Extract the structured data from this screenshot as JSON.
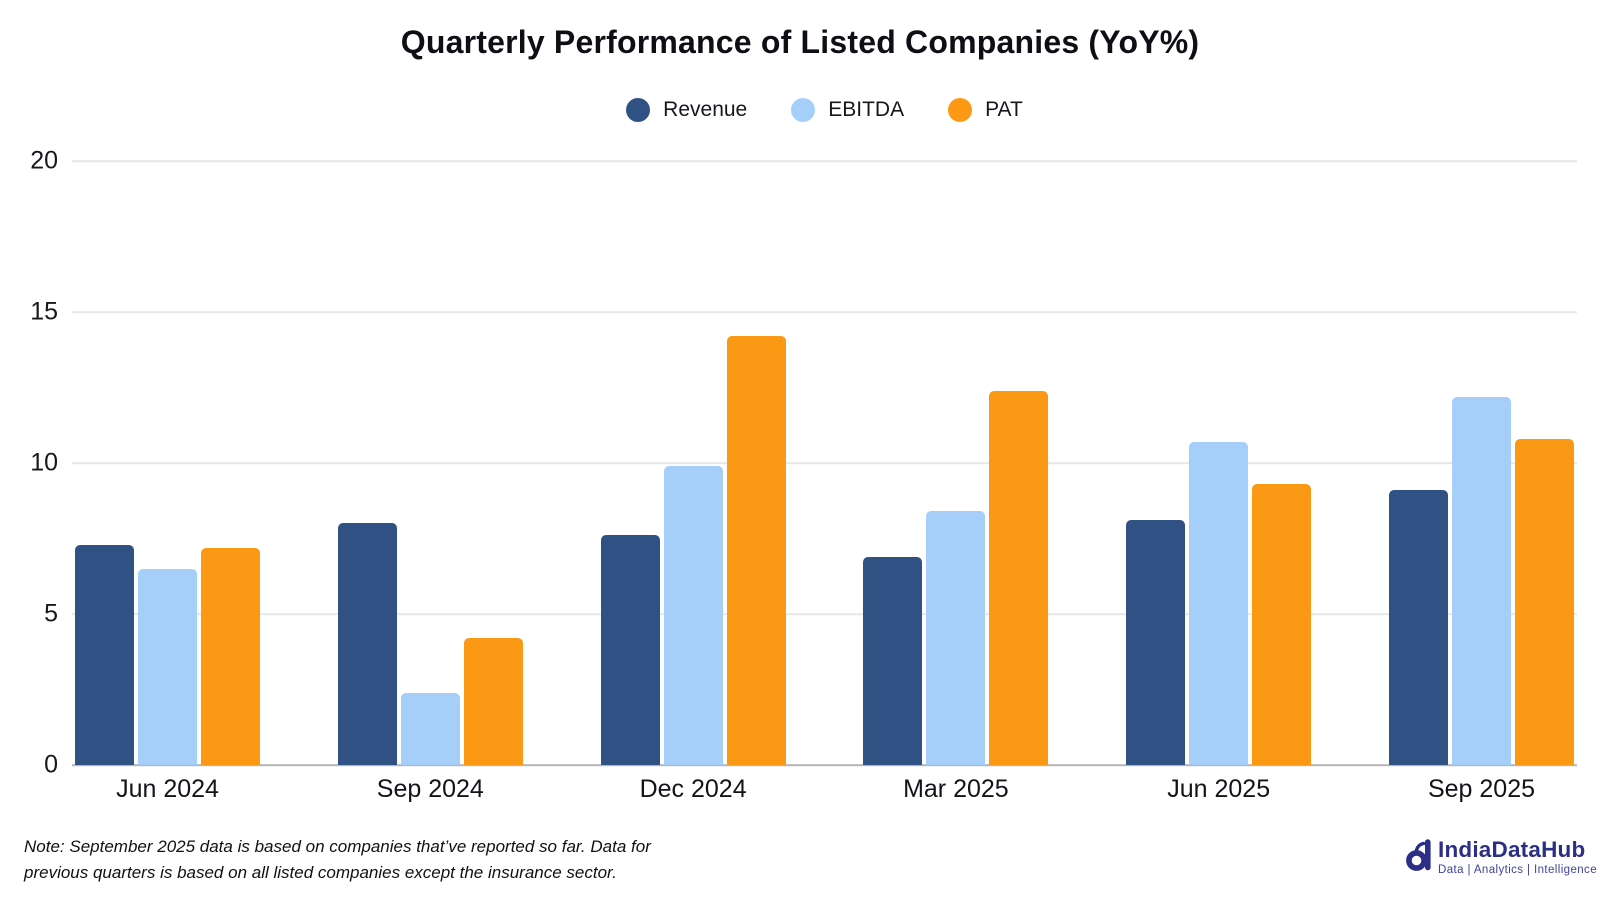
{
  "chart_data": {
    "type": "bar",
    "title": "Quarterly Performance of Listed Companies (YoY%)",
    "categories": [
      "Jun 2024",
      "Sep 2024",
      "Dec 2024",
      "Mar 2025",
      "Jun 2025",
      "Sep 2025"
    ],
    "series": [
      {
        "name": "Revenue",
        "color": "#2F5183",
        "values": [
          7.3,
          8.0,
          7.6,
          6.9,
          8.1,
          9.1
        ]
      },
      {
        "name": "EBITDA",
        "color": "#A5CFF9",
        "values": [
          6.5,
          2.4,
          9.9,
          8.4,
          10.7,
          12.2
        ]
      },
      {
        "name": "PAT",
        "color": "#FB9914",
        "values": [
          7.2,
          4.2,
          14.2,
          12.4,
          9.3,
          10.8
        ]
      }
    ],
    "xlabel": "",
    "ylabel": "",
    "ylim": [
      0,
      20
    ],
    "yticks": [
      0,
      5,
      10,
      15,
      20
    ],
    "grid": true,
    "legend_position": "top-center"
  },
  "note": {
    "line1": "Note: September 2025 data is based on companies that’ve reported so far. Data for",
    "line2": "previous quarters is based on all listed companies except the insurance sector."
  },
  "logo": {
    "name": "IndiaDataHub",
    "tagline": "Data | Analytics | Intelligence",
    "color": "#2B2F85",
    "tagline_color": "#3E43A0"
  }
}
